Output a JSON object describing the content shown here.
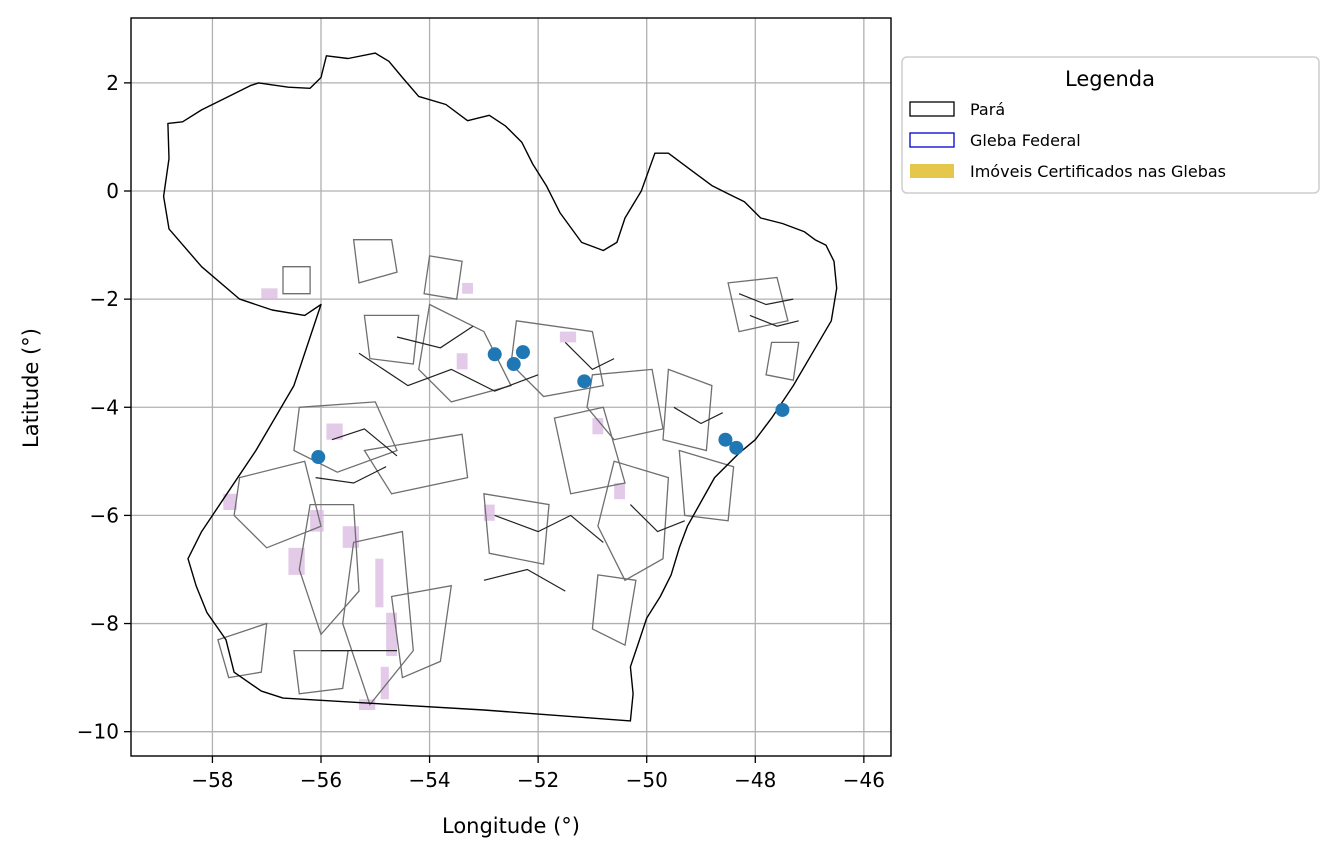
{
  "chart_data": {
    "type": "map",
    "xlabel": "Longitude (°)",
    "ylabel": "Latitude (°)",
    "xlim": [
      -59.5,
      -45.5
    ],
    "ylim": [
      -10.45,
      3.2
    ],
    "x_ticks": [
      -58,
      -56,
      -54,
      -52,
      -50,
      -48,
      -46
    ],
    "x_tick_labels": [
      "−58",
      "−56",
      "−54",
      "−52",
      "−50",
      "−48",
      "−46"
    ],
    "y_ticks": [
      2,
      0,
      -2,
      -4,
      -6,
      -8,
      -10
    ],
    "y_tick_labels": [
      "2",
      "0",
      "−2",
      "−4",
      "−6",
      "−8",
      "−10"
    ],
    "grid": true,
    "legend": {
      "title": "Legenda",
      "placement": "outside-upper-right",
      "entries": [
        {
          "label": "Pará",
          "style": "outline",
          "color": "#000000"
        },
        {
          "label": "Gleba Federal",
          "style": "outline",
          "color": "#0000cc"
        },
        {
          "label": "Imóveis Certificados nas Glebas",
          "style": "fill",
          "color": "#e5c84b"
        }
      ]
    },
    "colors": {
      "state_outline": "#000000",
      "gleba_outline": "#6f6f6f",
      "gleba_dark": "#222222",
      "imoveis_fill": "#d9b8e0",
      "points": "#1f77b4",
      "grid": "#b0b0b0"
    },
    "state_outline": [
      [
        -58.82,
        1.25
      ],
      [
        -58.55,
        1.28
      ],
      [
        -58.2,
        1.5
      ],
      [
        -57.8,
        1.7
      ],
      [
        -57.3,
        1.95
      ],
      [
        -57.15,
        2.0
      ],
      [
        -56.6,
        1.92
      ],
      [
        -56.2,
        1.9
      ],
      [
        -56.0,
        2.1
      ],
      [
        -55.9,
        2.5
      ],
      [
        -55.5,
        2.45
      ],
      [
        -55.0,
        2.55
      ],
      [
        -54.75,
        2.4
      ],
      [
        -54.5,
        2.1
      ],
      [
        -54.2,
        1.75
      ],
      [
        -53.7,
        1.6
      ],
      [
        -53.3,
        1.3
      ],
      [
        -52.9,
        1.4
      ],
      [
        -52.6,
        1.2
      ],
      [
        -52.3,
        0.9
      ],
      [
        -52.1,
        0.5
      ],
      [
        -51.85,
        0.1
      ],
      [
        -51.6,
        -0.4
      ],
      [
        -51.2,
        -0.95
      ],
      [
        -50.8,
        -1.1
      ],
      [
        -50.55,
        -0.95
      ],
      [
        -50.4,
        -0.5
      ],
      [
        -50.1,
        0.0
      ],
      [
        -49.85,
        0.7
      ],
      [
        -49.6,
        0.7
      ],
      [
        -49.2,
        0.4
      ],
      [
        -48.8,
        0.1
      ],
      [
        -48.5,
        -0.05
      ],
      [
        -48.2,
        -0.2
      ],
      [
        -47.9,
        -0.5
      ],
      [
        -47.5,
        -0.6
      ],
      [
        -47.1,
        -0.75
      ],
      [
        -46.9,
        -0.9
      ],
      [
        -46.7,
        -1.0
      ],
      [
        -46.55,
        -1.3
      ],
      [
        -46.5,
        -1.8
      ],
      [
        -46.6,
        -2.4
      ],
      [
        -46.95,
        -3.0
      ],
      [
        -47.3,
        -3.6
      ],
      [
        -47.7,
        -4.2
      ],
      [
        -48.0,
        -4.6
      ],
      [
        -48.3,
        -4.85
      ],
      [
        -48.75,
        -5.3
      ],
      [
        -49.0,
        -5.75
      ],
      [
        -49.25,
        -6.2
      ],
      [
        -49.4,
        -6.6
      ],
      [
        -49.55,
        -7.1
      ],
      [
        -49.75,
        -7.5
      ],
      [
        -50.0,
        -7.9
      ],
      [
        -50.15,
        -8.35
      ],
      [
        -50.3,
        -8.8
      ],
      [
        -50.25,
        -9.3
      ],
      [
        -50.3,
        -9.8
      ],
      [
        -53.0,
        -9.6
      ],
      [
        -56.7,
        -9.38
      ],
      [
        -57.1,
        -9.25
      ],
      [
        -57.6,
        -8.9
      ],
      [
        -57.75,
        -8.3
      ],
      [
        -58.1,
        -7.8
      ],
      [
        -58.3,
        -7.3
      ],
      [
        -58.45,
        -6.8
      ],
      [
        -58.2,
        -6.3
      ],
      [
        -57.8,
        -5.7
      ],
      [
        -57.2,
        -4.8
      ],
      [
        -56.5,
        -3.6
      ],
      [
        -56.0,
        -2.1
      ],
      [
        -56.3,
        -2.3
      ],
      [
        -56.9,
        -2.2
      ],
      [
        -57.5,
        -2.0
      ],
      [
        -58.2,
        -1.4
      ],
      [
        -58.8,
        -0.7
      ],
      [
        -58.9,
        -0.1
      ],
      [
        -58.8,
        0.6
      ],
      [
        -58.82,
        1.25
      ]
    ],
    "gleba_polygons": [
      [
        [
          -56.7,
          -1.4
        ],
        [
          -56.2,
          -1.4
        ],
        [
          -56.2,
          -1.9
        ],
        [
          -56.7,
          -1.9
        ]
      ],
      [
        [
          -55.4,
          -0.9
        ],
        [
          -54.7,
          -0.9
        ],
        [
          -54.6,
          -1.5
        ],
        [
          -55.3,
          -1.7
        ]
      ],
      [
        [
          -54.0,
          -1.2
        ],
        [
          -53.4,
          -1.3
        ],
        [
          -53.5,
          -2.0
        ],
        [
          -54.1,
          -1.9
        ]
      ],
      [
        [
          -55.2,
          -2.3
        ],
        [
          -54.2,
          -2.3
        ],
        [
          -54.3,
          -3.2
        ],
        [
          -55.1,
          -3.1
        ]
      ],
      [
        [
          -54.0,
          -2.1
        ],
        [
          -53.0,
          -2.6
        ],
        [
          -52.5,
          -3.6
        ],
        [
          -53.6,
          -3.9
        ],
        [
          -54.2,
          -3.3
        ]
      ],
      [
        [
          -52.4,
          -2.4
        ],
        [
          -51.0,
          -2.6
        ],
        [
          -50.8,
          -3.6
        ],
        [
          -51.9,
          -3.8
        ],
        [
          -52.5,
          -3.2
        ]
      ],
      [
        [
          -51.0,
          -3.4
        ],
        [
          -49.9,
          -3.3
        ],
        [
          -49.7,
          -4.4
        ],
        [
          -50.6,
          -4.6
        ],
        [
          -51.1,
          -4.0
        ]
      ],
      [
        [
          -56.4,
          -4.0
        ],
        [
          -55.0,
          -3.9
        ],
        [
          -54.6,
          -4.8
        ],
        [
          -55.7,
          -5.2
        ],
        [
          -56.5,
          -4.8
        ]
      ],
      [
        [
          -55.2,
          -4.8
        ],
        [
          -53.4,
          -4.5
        ],
        [
          -53.3,
          -5.3
        ],
        [
          -54.7,
          -5.6
        ]
      ],
      [
        [
          -57.5,
          -5.3
        ],
        [
          -56.3,
          -5.0
        ],
        [
          -56.0,
          -6.2
        ],
        [
          -57.0,
          -6.6
        ],
        [
          -57.6,
          -6.0
        ]
      ],
      [
        [
          -56.2,
          -5.8
        ],
        [
          -55.4,
          -5.8
        ],
        [
          -55.3,
          -7.4
        ],
        [
          -56.0,
          -8.2
        ],
        [
          -56.4,
          -7.0
        ]
      ],
      [
        [
          -55.4,
          -6.5
        ],
        [
          -54.5,
          -6.3
        ],
        [
          -54.3,
          -8.5
        ],
        [
          -55.1,
          -9.5
        ],
        [
          -55.6,
          -8.0
        ]
      ],
      [
        [
          -53.0,
          -5.6
        ],
        [
          -51.8,
          -5.8
        ],
        [
          -51.9,
          -6.9
        ],
        [
          -52.9,
          -6.7
        ]
      ],
      [
        [
          -51.7,
          -4.2
        ],
        [
          -50.8,
          -4.0
        ],
        [
          -50.4,
          -5.4
        ],
        [
          -51.4,
          -5.6
        ]
      ],
      [
        [
          -50.6,
          -5.0
        ],
        [
          -49.6,
          -5.3
        ],
        [
          -49.7,
          -6.8
        ],
        [
          -50.4,
          -7.2
        ],
        [
          -50.9,
          -6.2
        ]
      ],
      [
        [
          -50.9,
          -7.1
        ],
        [
          -50.2,
          -7.2
        ],
        [
          -50.4,
          -8.4
        ],
        [
          -51.0,
          -8.1
        ]
      ],
      [
        [
          -49.6,
          -3.3
        ],
        [
          -48.8,
          -3.6
        ],
        [
          -48.9,
          -4.8
        ],
        [
          -49.7,
          -4.6
        ]
      ],
      [
        [
          -49.4,
          -4.8
        ],
        [
          -48.4,
          -5.1
        ],
        [
          -48.5,
          -6.1
        ],
        [
          -49.3,
          -6.0
        ]
      ],
      [
        [
          -48.5,
          -1.7
        ],
        [
          -47.6,
          -1.6
        ],
        [
          -47.4,
          -2.4
        ],
        [
          -48.3,
          -2.6
        ]
      ],
      [
        [
          -47.7,
          -2.8
        ],
        [
          -47.2,
          -2.8
        ],
        [
          -47.3,
          -3.5
        ],
        [
          -47.8,
          -3.4
        ]
      ],
      [
        [
          -56.5,
          -8.5
        ],
        [
          -55.5,
          -8.5
        ],
        [
          -55.6,
          -9.2
        ],
        [
          -56.4,
          -9.3
        ]
      ],
      [
        [
          -54.7,
          -7.5
        ],
        [
          -53.6,
          -7.3
        ],
        [
          -53.8,
          -8.7
        ],
        [
          -54.5,
          -9.0
        ]
      ],
      [
        [
          -57.9,
          -8.3
        ],
        [
          -57.0,
          -8.0
        ],
        [
          -57.1,
          -8.9
        ],
        [
          -57.7,
          -9.0
        ]
      ]
    ],
    "dark_lines": [
      [
        [
          -55.3,
          -3.0
        ],
        [
          -54.4,
          -3.6
        ],
        [
          -53.6,
          -3.3
        ],
        [
          -52.8,
          -3.7
        ],
        [
          -52.0,
          -3.4
        ]
      ],
      [
        [
          -54.6,
          -2.7
        ],
        [
          -53.8,
          -2.9
        ],
        [
          -53.2,
          -2.5
        ]
      ],
      [
        [
          -51.5,
          -2.8
        ],
        [
          -51.0,
          -3.3
        ],
        [
          -50.6,
          -3.1
        ]
      ],
      [
        [
          -55.8,
          -4.6
        ],
        [
          -55.2,
          -4.4
        ],
        [
          -54.6,
          -4.9
        ]
      ],
      [
        [
          -56.1,
          -5.3
        ],
        [
          -55.4,
          -5.4
        ],
        [
          -54.8,
          -5.1
        ]
      ],
      [
        [
          -52.8,
          -6.0
        ],
        [
          -52.0,
          -6.3
        ],
        [
          -51.4,
          -6.0
        ],
        [
          -50.8,
          -6.5
        ]
      ],
      [
        [
          -50.3,
          -5.8
        ],
        [
          -49.8,
          -6.3
        ],
        [
          -49.3,
          -6.1
        ]
      ],
      [
        [
          -49.5,
          -4.0
        ],
        [
          -49.0,
          -4.3
        ],
        [
          -48.6,
          -4.1
        ]
      ],
      [
        [
          -48.3,
          -1.9
        ],
        [
          -47.8,
          -2.1
        ],
        [
          -47.3,
          -2.0
        ]
      ],
      [
        [
          -48.1,
          -2.3
        ],
        [
          -47.6,
          -2.5
        ],
        [
          -47.2,
          -2.4
        ]
      ],
      [
        [
          -56.0,
          -8.5
        ],
        [
          -54.6,
          -8.5
        ]
      ],
      [
        [
          -53.0,
          -7.2
        ],
        [
          -52.2,
          -7.0
        ],
        [
          -51.5,
          -7.4
        ]
      ]
    ],
    "imoveis_patches": [
      [
        -55.0,
        -6.8,
        0.15,
        0.9
      ],
      [
        -54.8,
        -7.8,
        0.2,
        0.8
      ],
      [
        -54.9,
        -8.8,
        0.15,
        0.6
      ],
      [
        -56.6,
        -6.6,
        0.3,
        0.5
      ],
      [
        -56.2,
        -5.9,
        0.25,
        0.4
      ],
      [
        -55.6,
        -6.2,
        0.3,
        0.4
      ],
      [
        -55.9,
        -4.3,
        0.3,
        0.3
      ],
      [
        -53.5,
        -3.0,
        0.2,
        0.3
      ],
      [
        -51.6,
        -2.6,
        0.3,
        0.2
      ],
      [
        -51.0,
        -4.2,
        0.2,
        0.3
      ],
      [
        -53.0,
        -5.8,
        0.2,
        0.3
      ],
      [
        -50.6,
        -5.4,
        0.2,
        0.3
      ],
      [
        -57.8,
        -5.6,
        0.25,
        0.3
      ],
      [
        -57.1,
        -1.8,
        0.3,
        0.2
      ],
      [
        -55.3,
        -9.4,
        0.3,
        0.2
      ],
      [
        -53.4,
        -1.7,
        0.2,
        0.2
      ]
    ],
    "points": [
      {
        "lon": -52.8,
        "lat": -3.02
      },
      {
        "lon": -52.28,
        "lat": -2.98
      },
      {
        "lon": -52.45,
        "lat": -3.2
      },
      {
        "lon": -51.15,
        "lat": -3.52
      },
      {
        "lon": -56.05,
        "lat": -4.92
      },
      {
        "lon": -48.55,
        "lat": -4.6
      },
      {
        "lon": -48.35,
        "lat": -4.75
      },
      {
        "lon": -47.5,
        "lat": -4.05
      }
    ]
  }
}
